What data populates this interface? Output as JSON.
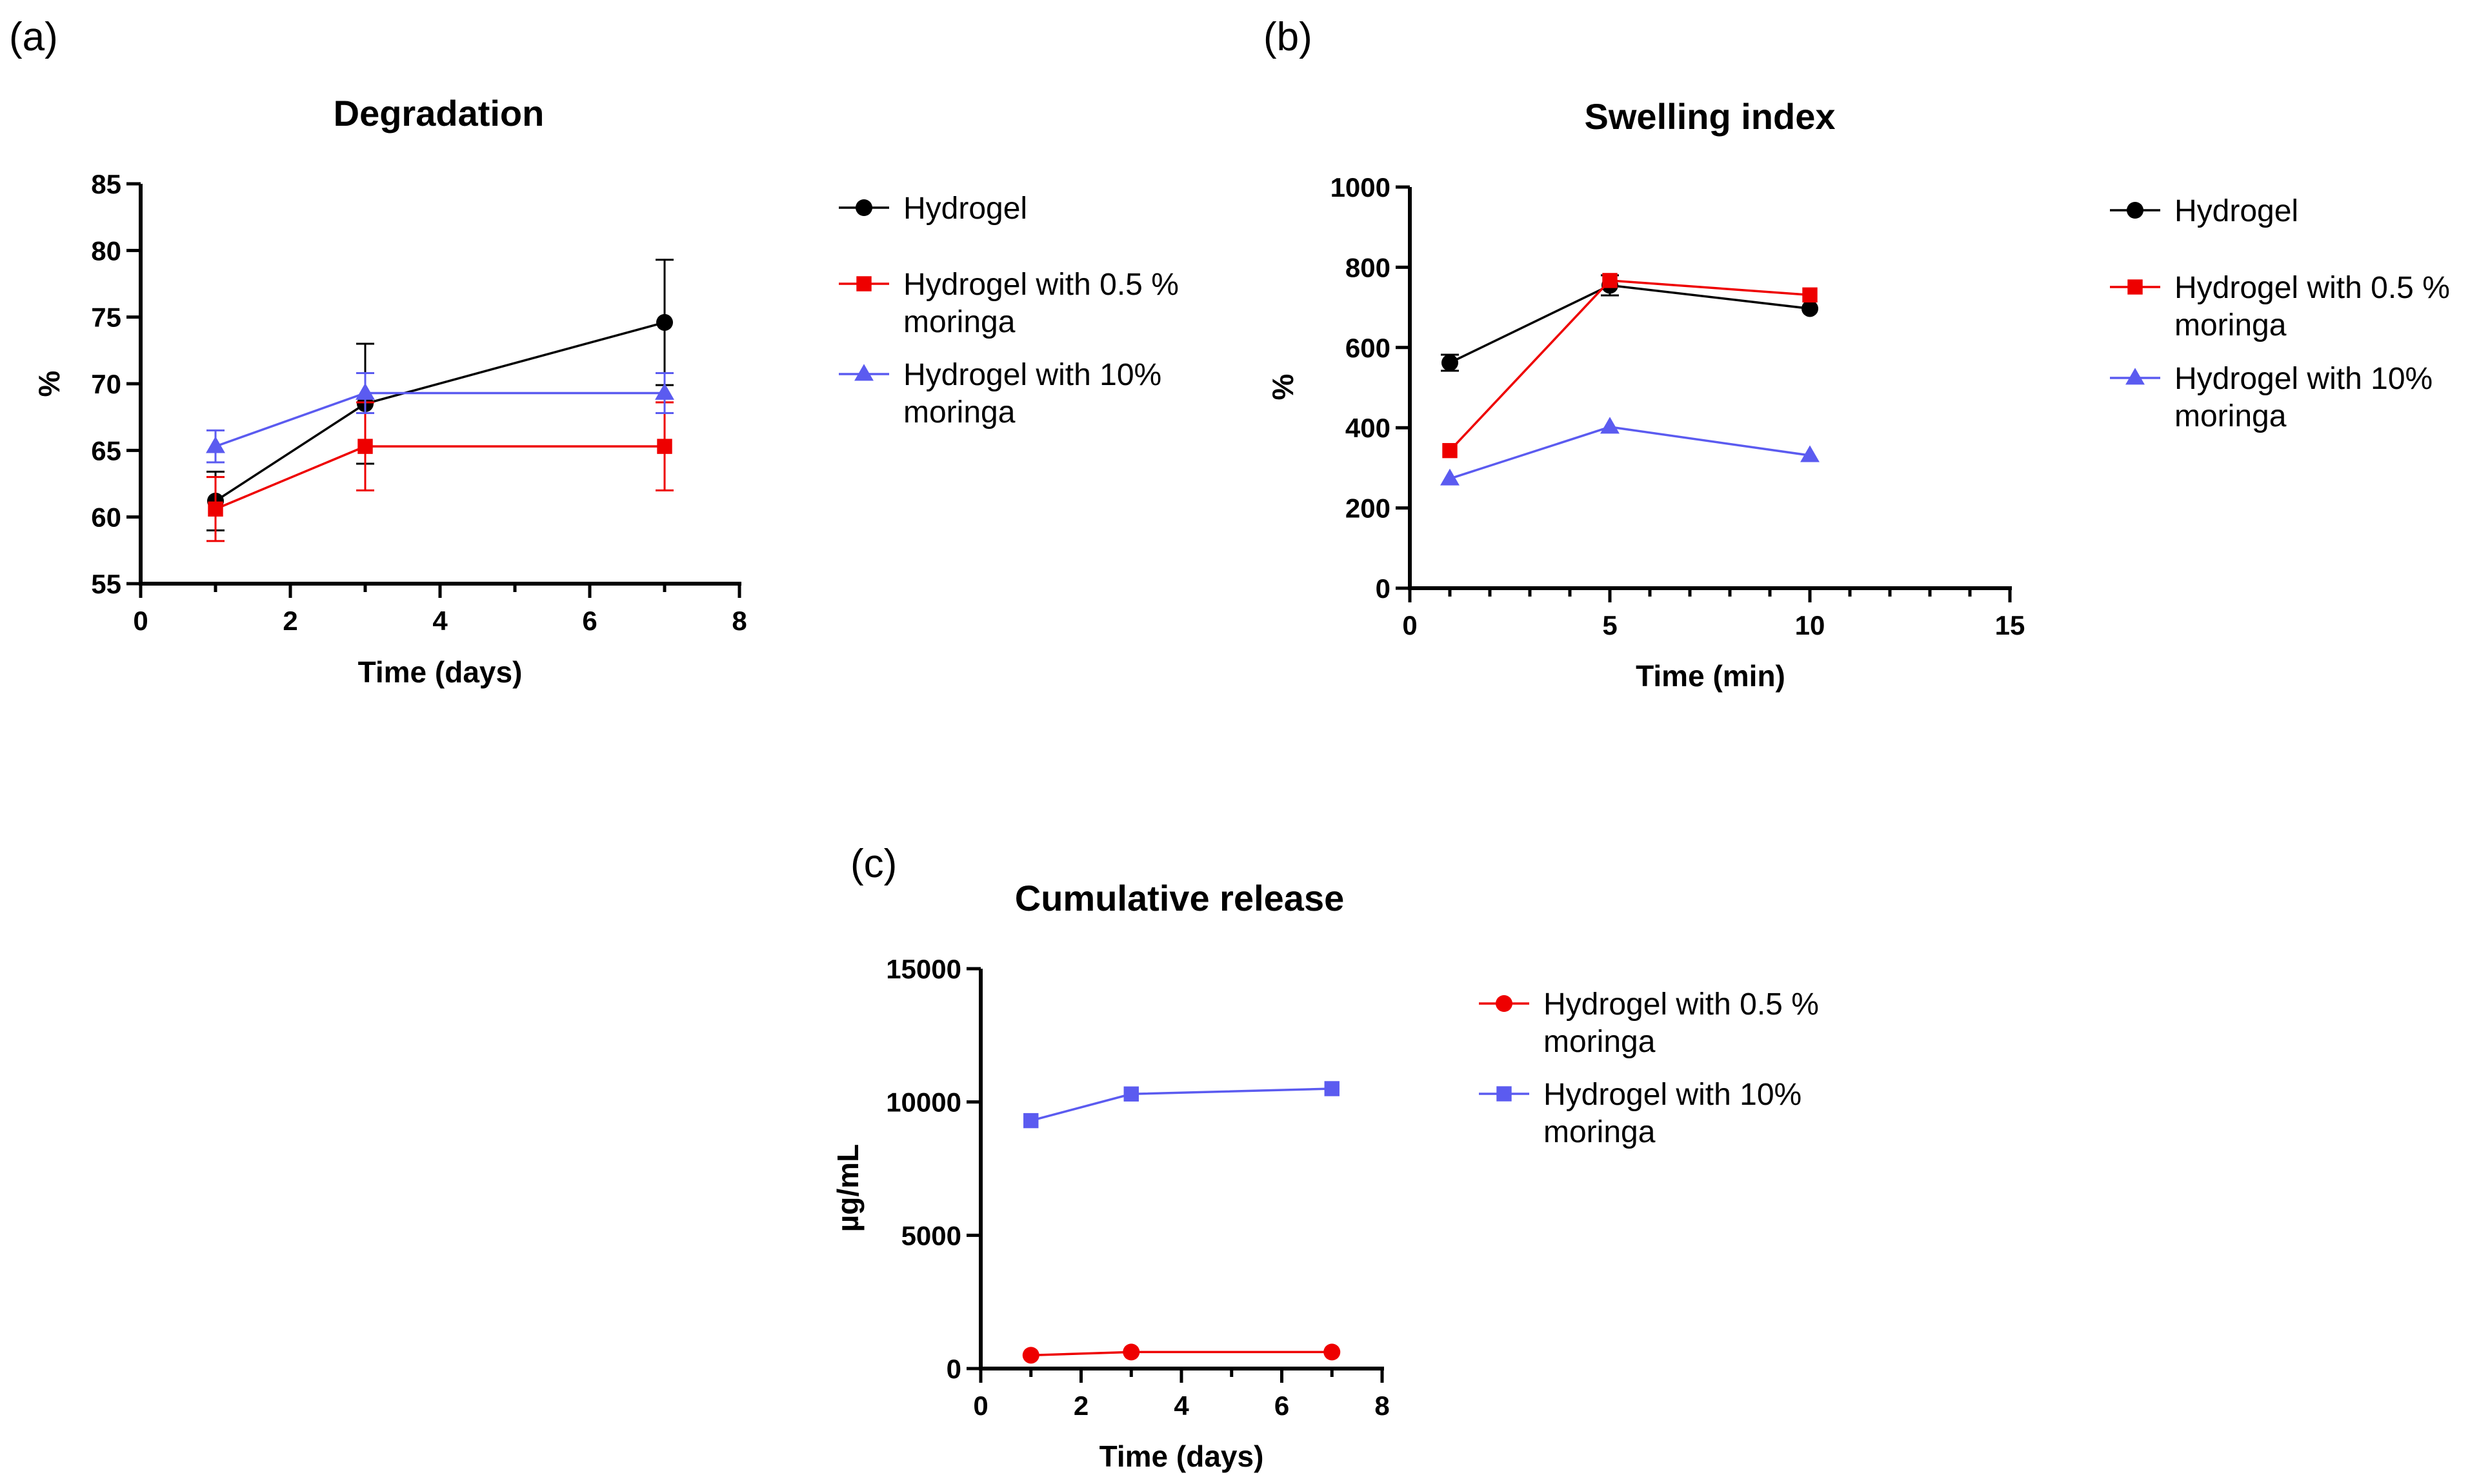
{
  "chart_data": [
    {
      "id": "a",
      "panel_label": "(a)",
      "type": "line",
      "title": "Degradation",
      "xlabel": "Time (days)",
      "ylabel": "%",
      "xlim": [
        0,
        8
      ],
      "ylim": [
        55,
        85
      ],
      "xticks": [
        0,
        2,
        4,
        6,
        8
      ],
      "yticks": [
        55,
        60,
        65,
        70,
        75,
        80,
        85
      ],
      "x_minor_ticks": true,
      "error_bars": true,
      "legend": "right",
      "series": [
        {
          "name": "Hydrogel",
          "legend_lines": [
            "Hydrogel"
          ],
          "color": "#000000",
          "marker": "circle",
          "x": [
            1,
            3,
            7
          ],
          "y": [
            61.2,
            68.5,
            74.6
          ],
          "err": [
            2.2,
            4.5,
            4.7
          ]
        },
        {
          "name": "Hydrogel with 0.5 % moringa",
          "legend_lines": [
            "Hydrogel with 0.5 %",
            "moringa"
          ],
          "color": "#ee0000",
          "marker": "square",
          "x": [
            1,
            3,
            7
          ],
          "y": [
            60.6,
            65.3,
            65.3
          ],
          "err": [
            2.4,
            3.3,
            3.3
          ]
        },
        {
          "name": "Hydrogel with 10% moringa",
          "legend_lines": [
            "Hydrogel with 10%",
            "moringa"
          ],
          "color": "#5b5bf0",
          "marker": "triangle",
          "x": [
            1,
            3,
            7
          ],
          "y": [
            65.3,
            69.3,
            69.3
          ],
          "err": [
            1.2,
            1.5,
            1.5
          ]
        }
      ]
    },
    {
      "id": "b",
      "panel_label": "(b)",
      "type": "line",
      "title": "Swelling index",
      "xlabel": "Time (min)",
      "ylabel": "%",
      "xlim": [
        0,
        15
      ],
      "ylim": [
        0,
        1000
      ],
      "xticks": [
        0,
        5,
        10,
        15
      ],
      "yticks": [
        0,
        200,
        400,
        600,
        800,
        1000
      ],
      "x_minor_ticks": true,
      "error_bars": true,
      "legend": "right",
      "series": [
        {
          "name": "Hydrogel",
          "legend_lines": [
            "Hydrogel"
          ],
          "color": "#000000",
          "marker": "circle",
          "x": [
            1,
            5,
            10
          ],
          "y": [
            562,
            755,
            697
          ],
          "err": [
            20,
            25,
            0
          ]
        },
        {
          "name": "Hydrogel with 0.5 % moringa",
          "legend_lines": [
            "Hydrogel with 0.5 %",
            "moringa"
          ],
          "color": "#ee0000",
          "marker": "square",
          "x": [
            1,
            5,
            10
          ],
          "y": [
            343,
            767,
            731
          ],
          "err": [
            0,
            0,
            0
          ]
        },
        {
          "name": "Hydrogel with 10% moringa",
          "legend_lines": [
            "Hydrogel with 10%",
            "moringa"
          ],
          "color": "#5b5bf0",
          "marker": "triangle",
          "x": [
            1,
            5,
            10
          ],
          "y": [
            273,
            402,
            331
          ],
          "err": [
            0,
            0,
            0
          ]
        }
      ]
    },
    {
      "id": "c",
      "panel_label": "(c)",
      "type": "line",
      "title": "Cumulative release",
      "xlabel": "Time (days)",
      "ylabel": "µg/mL",
      "xlim": [
        0,
        8
      ],
      "ylim": [
        0,
        15000
      ],
      "xticks": [
        0,
        2,
        4,
        6,
        8
      ],
      "yticks": [
        0,
        5000,
        10000,
        15000
      ],
      "x_minor_ticks": true,
      "error_bars": false,
      "legend": "right",
      "series": [
        {
          "name": "Hydrogel with 0.5 % moringa",
          "legend_lines": [
            "Hydrogel with 0.5 %",
            "moringa"
          ],
          "color": "#ee0000",
          "marker": "circle",
          "x": [
            1,
            3,
            7
          ],
          "y": [
            500,
            620,
            620
          ]
        },
        {
          "name": "Hydrogel with 10% moringa",
          "legend_lines": [
            "Hydrogel with 10%",
            "moringa"
          ],
          "color": "#5b5bf0",
          "marker": "square",
          "x": [
            1,
            3,
            7
          ],
          "y": [
            9300,
            10300,
            10500
          ]
        }
      ]
    }
  ]
}
